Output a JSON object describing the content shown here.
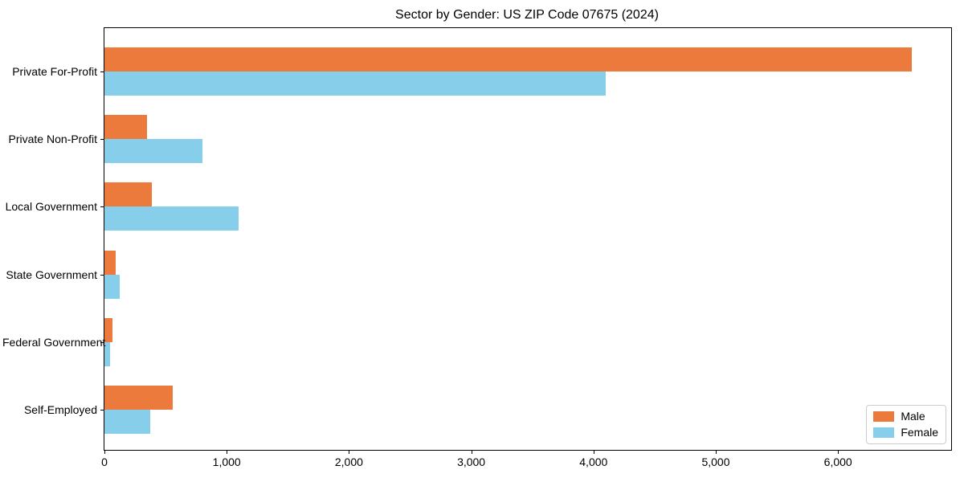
{
  "chart_data": {
    "type": "bar",
    "orientation": "horizontal",
    "title": "Sector by Gender: US ZIP Code 07675 (2024)",
    "xlabel": "",
    "ylabel": "",
    "categories": [
      "Private For-Profit",
      "Private Non-Profit",
      "Local Government",
      "State Government",
      "Federal Government",
      "Self-Employed"
    ],
    "series": [
      {
        "name": "Male",
        "color": "#ec7a3d",
        "values": [
          6600,
          350,
          390,
          90,
          65,
          560
        ]
      },
      {
        "name": "Female",
        "color": "#87ceeb",
        "values": [
          4100,
          800,
          1100,
          125,
          45,
          375
        ]
      }
    ],
    "xlim": [
      0,
      6925
    ],
    "x_ticks": [
      {
        "value": 0,
        "label": "0"
      },
      {
        "value": 1000,
        "label": "1,000"
      },
      {
        "value": 2000,
        "label": "2,000"
      },
      {
        "value": 3000,
        "label": "3,000"
      },
      {
        "value": 4000,
        "label": "4,000"
      },
      {
        "value": 5000,
        "label": "5,000"
      },
      {
        "value": 6000,
        "label": "6,000"
      }
    ],
    "grid": false,
    "legend": {
      "position": "lower right",
      "entries": [
        "Male",
        "Female"
      ]
    }
  }
}
